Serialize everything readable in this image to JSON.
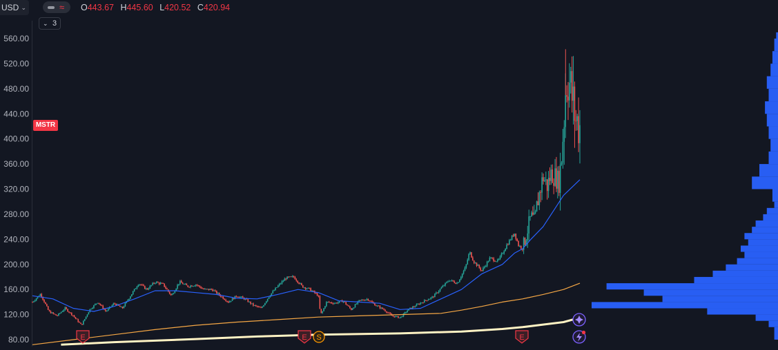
{
  "header": {
    "currency": "USD",
    "ohlc": [
      {
        "key": "O",
        "value": "443.67"
      },
      {
        "key": "H",
        "value": "445.60"
      },
      {
        "key": "L",
        "value": "420.52"
      },
      {
        "key": "C",
        "value": "420.94"
      }
    ],
    "indicators_count": "3",
    "symbol": "MSTR"
  },
  "colors": {
    "background": "#131722",
    "up": "#26a69a",
    "down": "#ef5350",
    "ma_short": "#2962ff",
    "ma_long": "#f7a845",
    "ma_extra": "#fff3c4",
    "volume_profile": "#2962ff"
  },
  "icons": {
    "series_type": "line-style-icon",
    "alert": "sparkle-icon",
    "lightning": "lightning-icon"
  },
  "events": [
    {
      "label": "E",
      "type": "earnings",
      "x_fraction": 0.16
    },
    {
      "label": "E",
      "type": "earnings",
      "x_fraction": 0.53
    },
    {
      "label": "S",
      "type": "split",
      "x_fraction": 0.555
    },
    {
      "label": "E",
      "type": "earnings",
      "x_fraction": 0.89
    }
  ],
  "chart_data": {
    "type": "candlestick",
    "y_axis": {
      "ticks": [
        "80.00",
        "120.00",
        "160.00",
        "200.00",
        "240.00",
        "280.00",
        "320.00",
        "360.00",
        "400.00",
        "440.00",
        "480.00",
        "520.00",
        "560.00"
      ],
      "min": 73,
      "max": 568
    },
    "price_anchors": [
      [
        0.0,
        140
      ],
      [
        0.02,
        153
      ],
      [
        0.04,
        125
      ],
      [
        0.06,
        118
      ],
      [
        0.08,
        130
      ],
      [
        0.1,
        118
      ],
      [
        0.12,
        103
      ],
      [
        0.14,
        128
      ],
      [
        0.16,
        140
      ],
      [
        0.18,
        125
      ],
      [
        0.2,
        138
      ],
      [
        0.22,
        130
      ],
      [
        0.24,
        150
      ],
      [
        0.26,
        170
      ],
      [
        0.28,
        160
      ],
      [
        0.3,
        172
      ],
      [
        0.32,
        168
      ],
      [
        0.34,
        150
      ],
      [
        0.36,
        172
      ],
      [
        0.38,
        165
      ],
      [
        0.4,
        168
      ],
      [
        0.42,
        160
      ],
      [
        0.44,
        160
      ],
      [
        0.46,
        150
      ],
      [
        0.48,
        140
      ],
      [
        0.5,
        150
      ],
      [
        0.52,
        145
      ],
      [
        0.54,
        135
      ],
      [
        0.56,
        130
      ],
      [
        0.58,
        150
      ],
      [
        0.6,
        165
      ],
      [
        0.62,
        178
      ],
      [
        0.64,
        180
      ],
      [
        0.66,
        165
      ],
      [
        0.68,
        160
      ],
      [
        0.7,
        150
      ],
      [
        0.705,
        120
      ],
      [
        0.71,
        125
      ],
      [
        0.72,
        140
      ],
      [
        0.74,
        138
      ],
      [
        0.76,
        142
      ],
      [
        0.78,
        128
      ],
      [
        0.8,
        142
      ],
      [
        0.82,
        145
      ],
      [
        0.84,
        135
      ],
      [
        0.86,
        128
      ],
      [
        0.88,
        118
      ],
      [
        0.9,
        115
      ],
      [
        0.92,
        128
      ],
      [
        0.94,
        135
      ],
      [
        0.96,
        142
      ],
      [
        0.98,
        148
      ],
      [
        1.0,
        162
      ],
      [
        1.02,
        175
      ],
      [
        1.04,
        170
      ],
      [
        1.06,
        195
      ],
      [
        1.07,
        220
      ],
      [
        1.08,
        205
      ],
      [
        1.1,
        190
      ],
      [
        1.12,
        210
      ],
      [
        1.14,
        205
      ],
      [
        1.16,
        230
      ],
      [
        1.18,
        250
      ],
      [
        1.19,
        230
      ],
      [
        1.2,
        225
      ],
      [
        1.21,
        250
      ],
      [
        1.22,
        275
      ],
      [
        1.23,
        268
      ],
      [
        1.235,
        295
      ],
      [
        1.25,
        340
      ],
      [
        1.26,
        325
      ],
      [
        1.27,
        345
      ],
      [
        1.28,
        340
      ],
      [
        1.29,
        330
      ],
      [
        1.3,
        420
      ],
      [
        1.305,
        480
      ],
      [
        1.31,
        505
      ],
      [
        1.32,
        470
      ],
      [
        1.33,
        430
      ],
      [
        1.34,
        420
      ]
    ],
    "ma_short": [
      [
        0.0,
        150
      ],
      [
        0.05,
        145
      ],
      [
        0.1,
        130
      ],
      [
        0.15,
        125
      ],
      [
        0.2,
        133
      ],
      [
        0.25,
        145
      ],
      [
        0.3,
        158
      ],
      [
        0.35,
        158
      ],
      [
        0.4,
        155
      ],
      [
        0.45,
        152
      ],
      [
        0.5,
        146
      ],
      [
        0.55,
        145
      ],
      [
        0.6,
        152
      ],
      [
        0.65,
        160
      ],
      [
        0.7,
        155
      ],
      [
        0.75,
        142
      ],
      [
        0.8,
        140
      ],
      [
        0.85,
        138
      ],
      [
        0.9,
        128
      ],
      [
        0.95,
        130
      ],
      [
        1.0,
        145
      ],
      [
        1.05,
        160
      ],
      [
        1.1,
        185
      ],
      [
        1.15,
        200
      ],
      [
        1.18,
        218
      ],
      [
        1.2,
        225
      ],
      [
        1.22,
        240
      ],
      [
        1.25,
        260
      ],
      [
        1.28,
        290
      ],
      [
        1.3,
        310
      ],
      [
        1.34,
        335
      ]
    ],
    "ma_long": [
      [
        0.0,
        72
      ],
      [
        0.1,
        80
      ],
      [
        0.2,
        88
      ],
      [
        0.3,
        96
      ],
      [
        0.4,
        103
      ],
      [
        0.5,
        108
      ],
      [
        0.6,
        112
      ],
      [
        0.7,
        116
      ],
      [
        0.8,
        118
      ],
      [
        0.9,
        120
      ],
      [
        1.0,
        122
      ],
      [
        1.05,
        127
      ],
      [
        1.1,
        133
      ],
      [
        1.15,
        140
      ],
      [
        1.2,
        145
      ],
      [
        1.25,
        152
      ],
      [
        1.3,
        160
      ],
      [
        1.34,
        170
      ]
    ],
    "ma_extra": [
      [
        0.07,
        72
      ],
      [
        0.2,
        76
      ],
      [
        0.4,
        81
      ],
      [
        0.55,
        85
      ],
      [
        0.7,
        88
      ],
      [
        0.9,
        90
      ],
      [
        1.05,
        93
      ],
      [
        1.15,
        97
      ],
      [
        1.2,
        100
      ],
      [
        1.25,
        104
      ],
      [
        1.3,
        108
      ],
      [
        1.34,
        115
      ]
    ],
    "volume_profile": [
      [
        80,
        0.02
      ],
      [
        100,
        0.05
      ],
      [
        110,
        0.12
      ],
      [
        120,
        0.38
      ],
      [
        130,
        1.0
      ],
      [
        140,
        0.62
      ],
      [
        150,
        0.72
      ],
      [
        160,
        0.92
      ],
      [
        170,
        0.45
      ],
      [
        180,
        0.35
      ],
      [
        190,
        0.28
      ],
      [
        200,
        0.22
      ],
      [
        210,
        0.18
      ],
      [
        220,
        0.2
      ],
      [
        230,
        0.16
      ],
      [
        240,
        0.18
      ],
      [
        250,
        0.14
      ],
      [
        260,
        0.12
      ],
      [
        270,
        0.08
      ],
      [
        280,
        0.06
      ],
      [
        290,
        0.02
      ],
      [
        300,
        0.03
      ],
      [
        320,
        0.14
      ],
      [
        340,
        0.1
      ],
      [
        360,
        0.05
      ],
      [
        380,
        0.04
      ],
      [
        400,
        0.05
      ],
      [
        420,
        0.06
      ],
      [
        440,
        0.07
      ],
      [
        460,
        0.05
      ],
      [
        480,
        0.06
      ],
      [
        500,
        0.04
      ],
      [
        520,
        0.03
      ],
      [
        540,
        0.02
      ],
      [
        560,
        0.01
      ]
    ]
  }
}
